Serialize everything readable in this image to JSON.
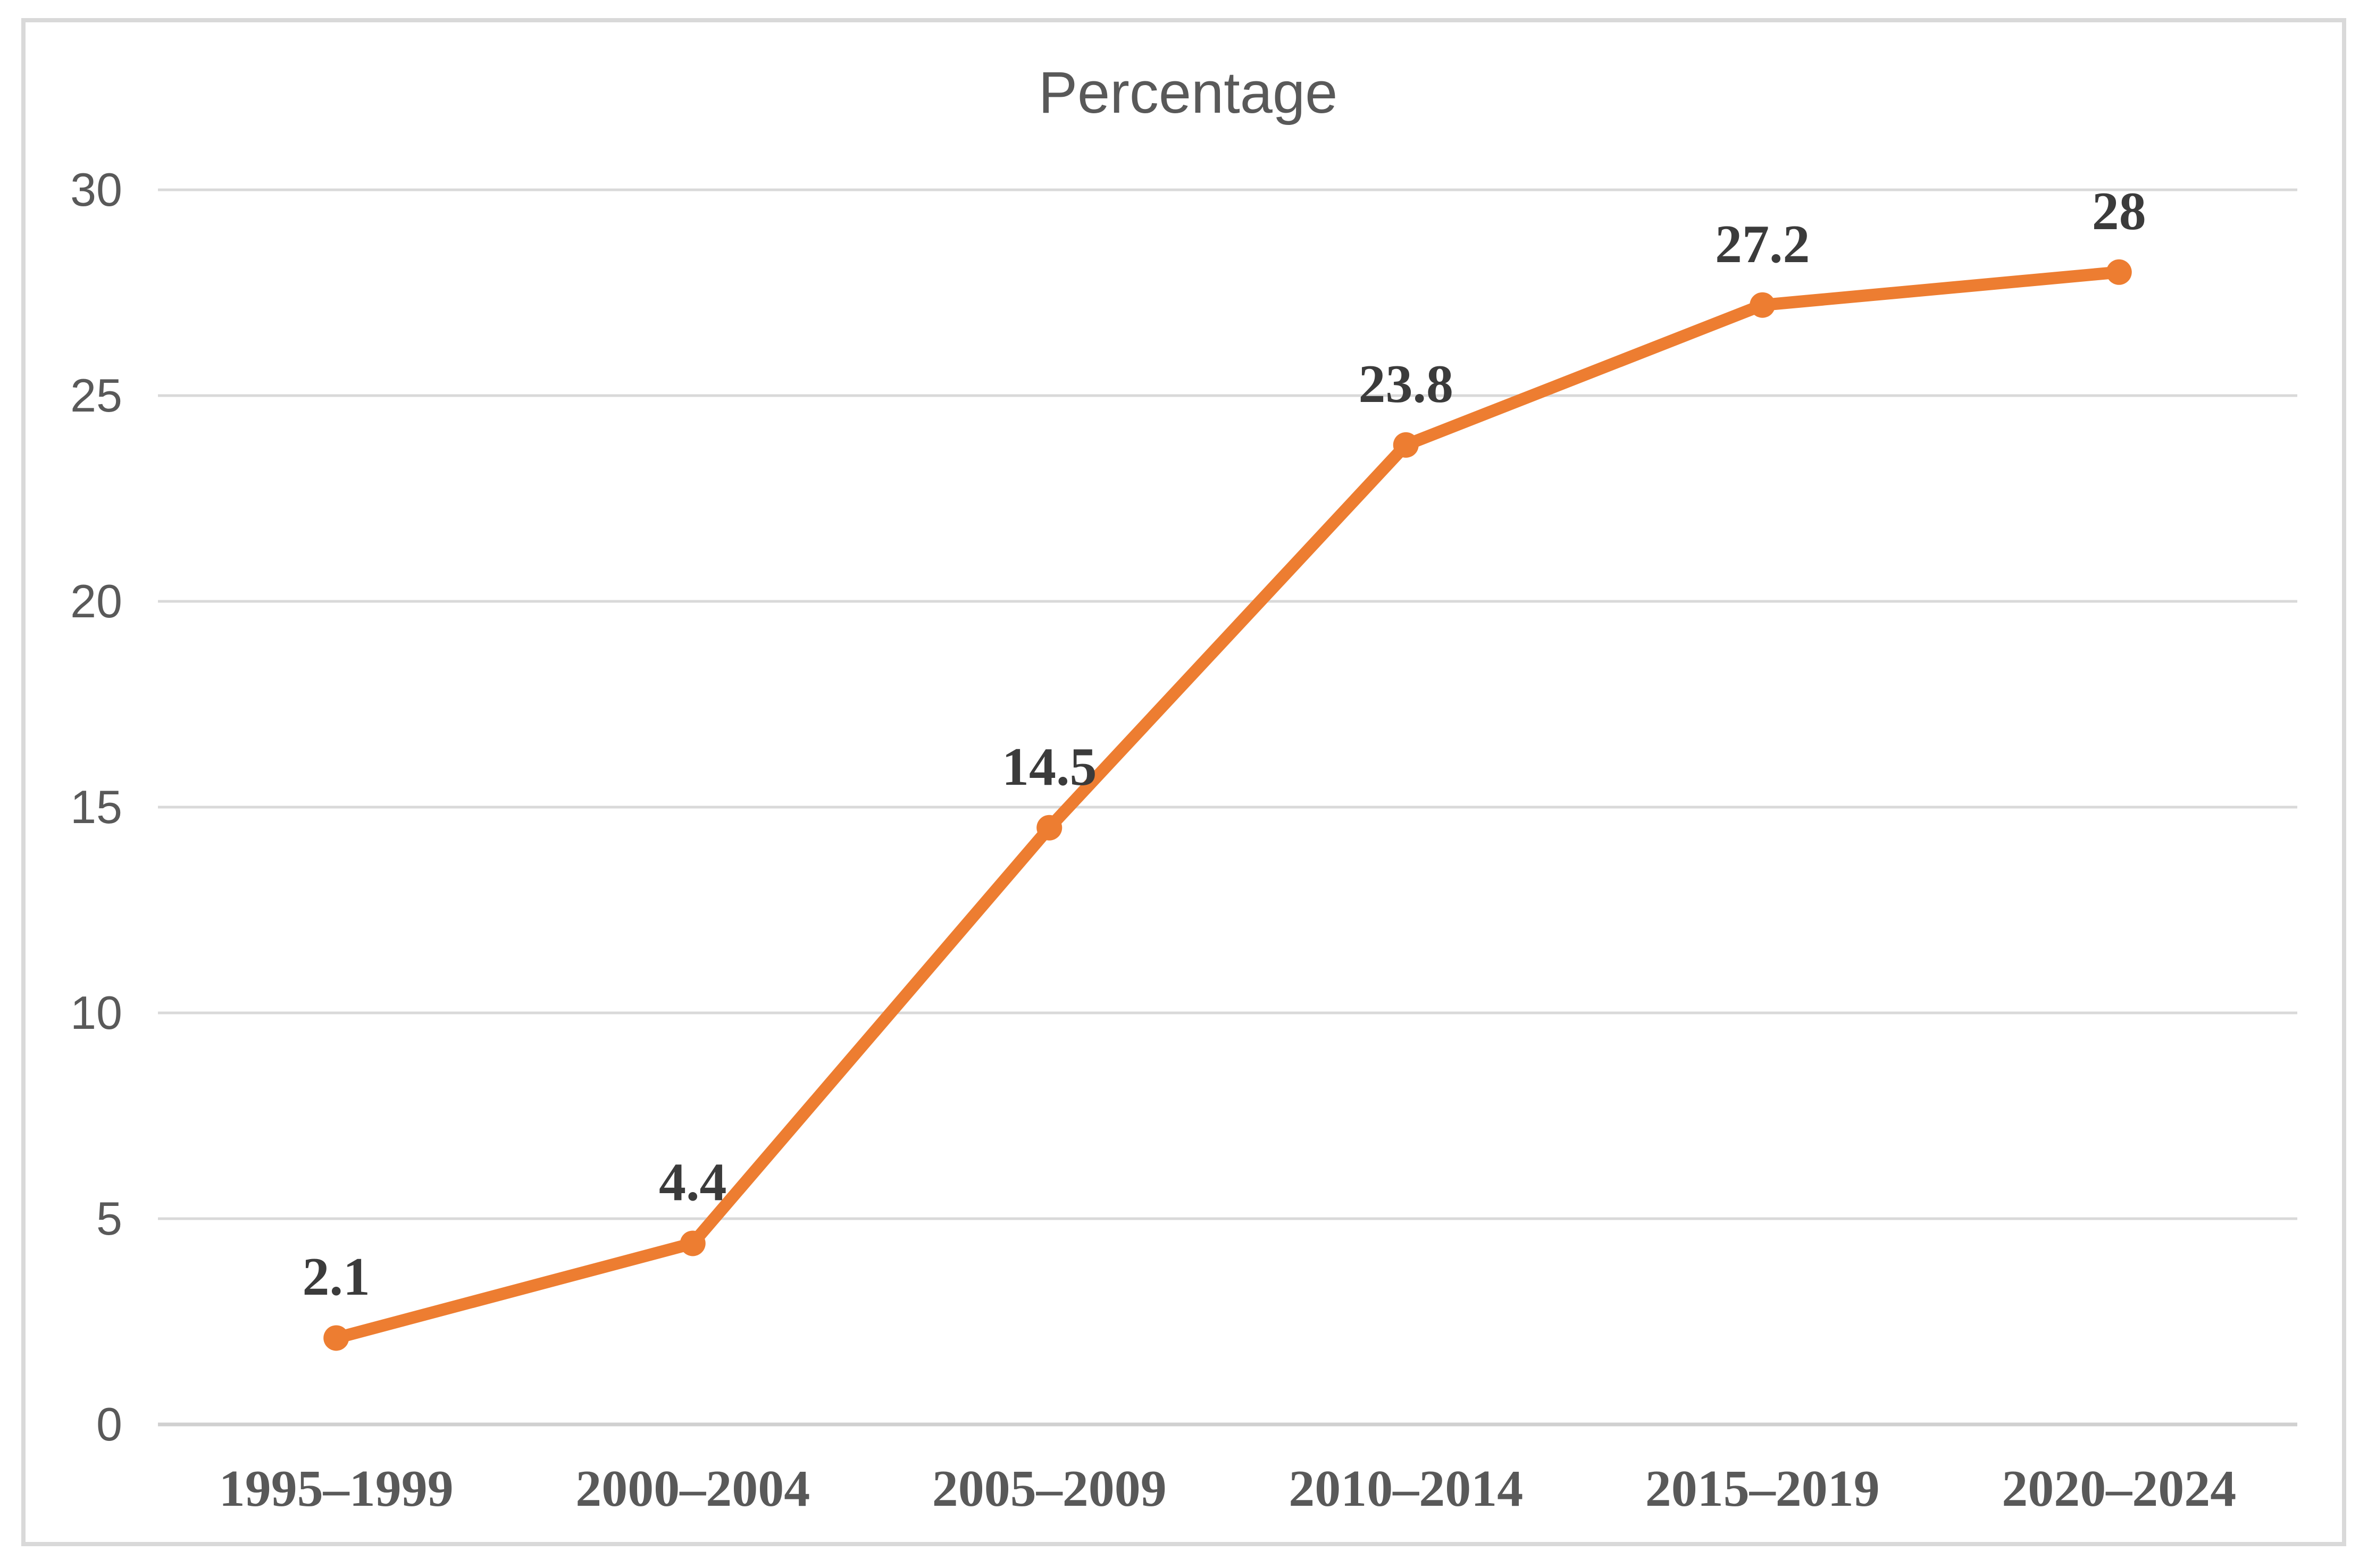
{
  "chart_data": {
    "type": "line",
    "title": "Percentage",
    "categories": [
      "1995–1999",
      "2000–2004",
      "2005–2009",
      "2010–2014",
      "2015–2019",
      "2020–2024"
    ],
    "values": [
      2.1,
      4.4,
      14.5,
      23.8,
      27.2,
      28
    ],
    "data_labels": [
      "2.1",
      "4.4",
      "14.5",
      "23.8",
      "27.2",
      "28"
    ],
    "yticks": [
      0,
      5,
      10,
      15,
      20,
      25,
      30
    ],
    "ylim": [
      0,
      30
    ],
    "xlabel": "",
    "ylabel": "",
    "legend": "none",
    "grid": true,
    "marker": "circle",
    "colors": {
      "series": "#ED7D31",
      "gridline": "#D9D9D9",
      "axis_line": "#D0D0D0",
      "chart_border": "#D9D9D9",
      "title_text": "#595959",
      "axis_text": "#595959",
      "data_label_text": "#3B3B3B"
    }
  }
}
